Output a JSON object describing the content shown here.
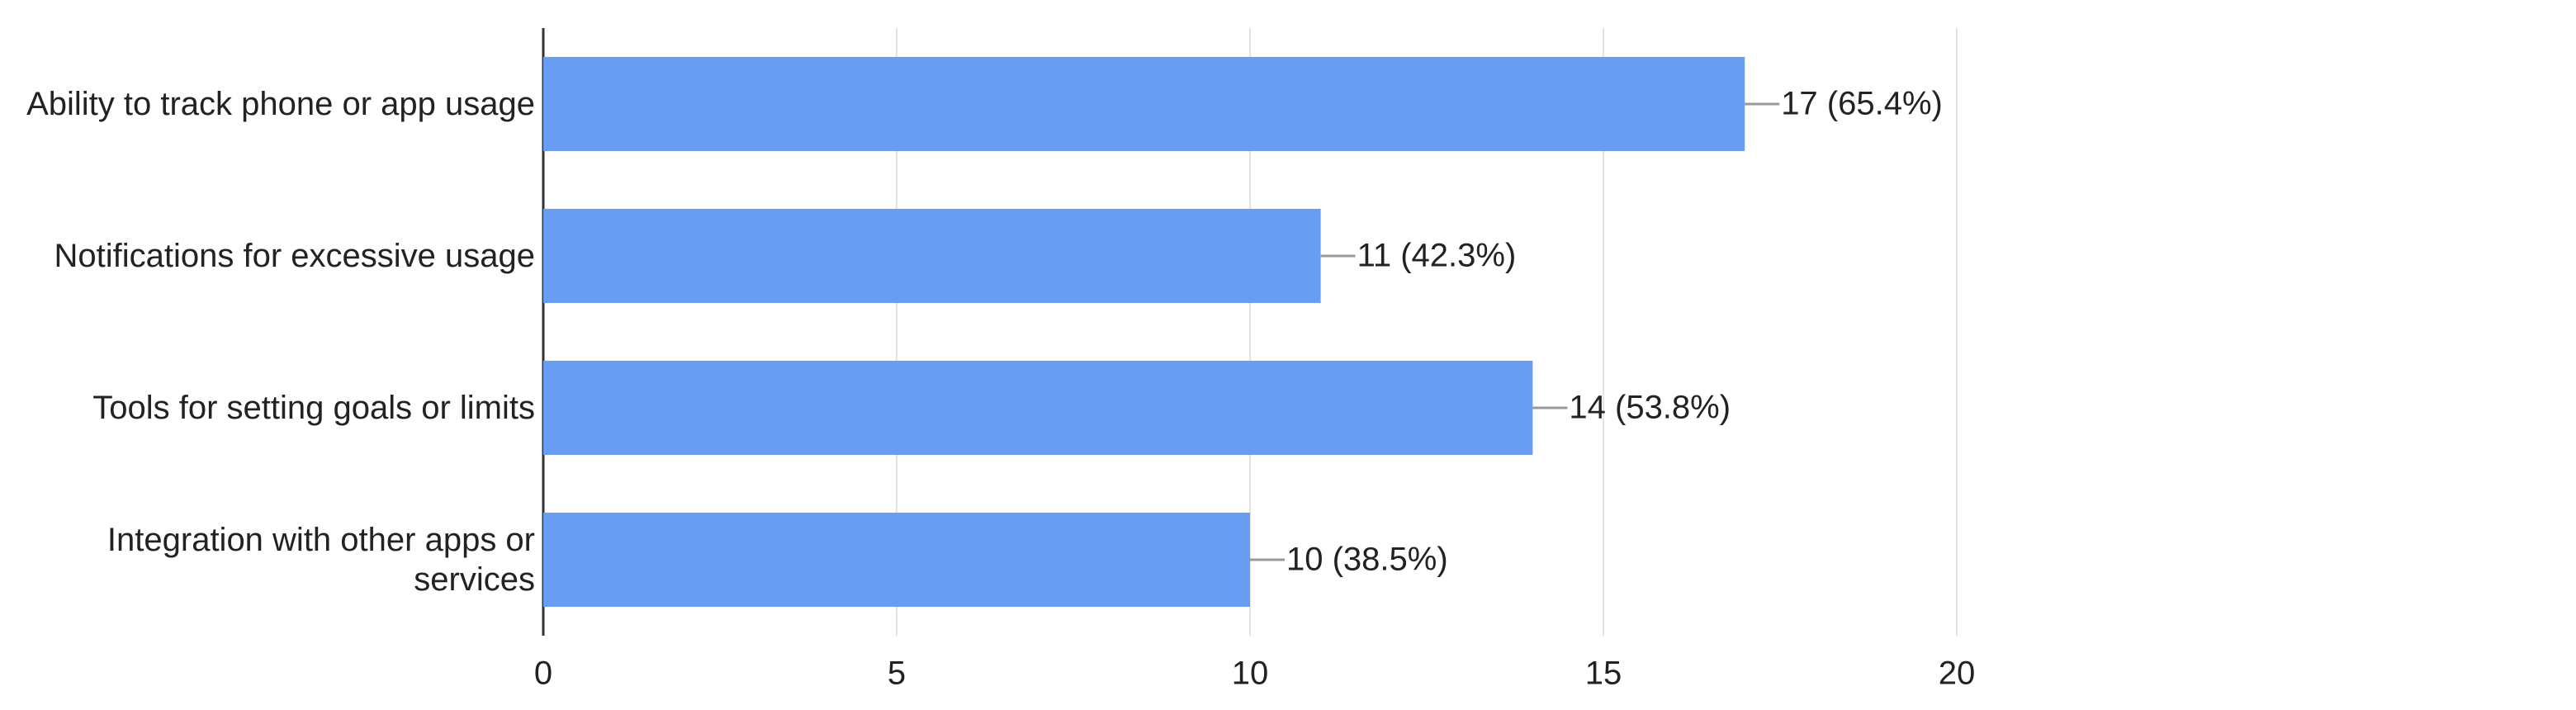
{
  "chart_data": {
    "type": "hbar",
    "categories": [
      "Ability to track phone or app usage",
      "Notifications for excessive usage",
      "Tools for setting goals or limits",
      "Integration with other apps or services"
    ],
    "values": [
      17,
      11,
      14,
      10
    ],
    "value_labels": [
      "17 (65.4%)",
      "11 (42.3%)",
      "14 (53.8%)",
      "10 (38.5%)"
    ],
    "color": "#699df1",
    "xlim": [
      0,
      20
    ],
    "xticks": [
      0,
      5,
      10,
      15,
      20
    ],
    "grid": true
  }
}
